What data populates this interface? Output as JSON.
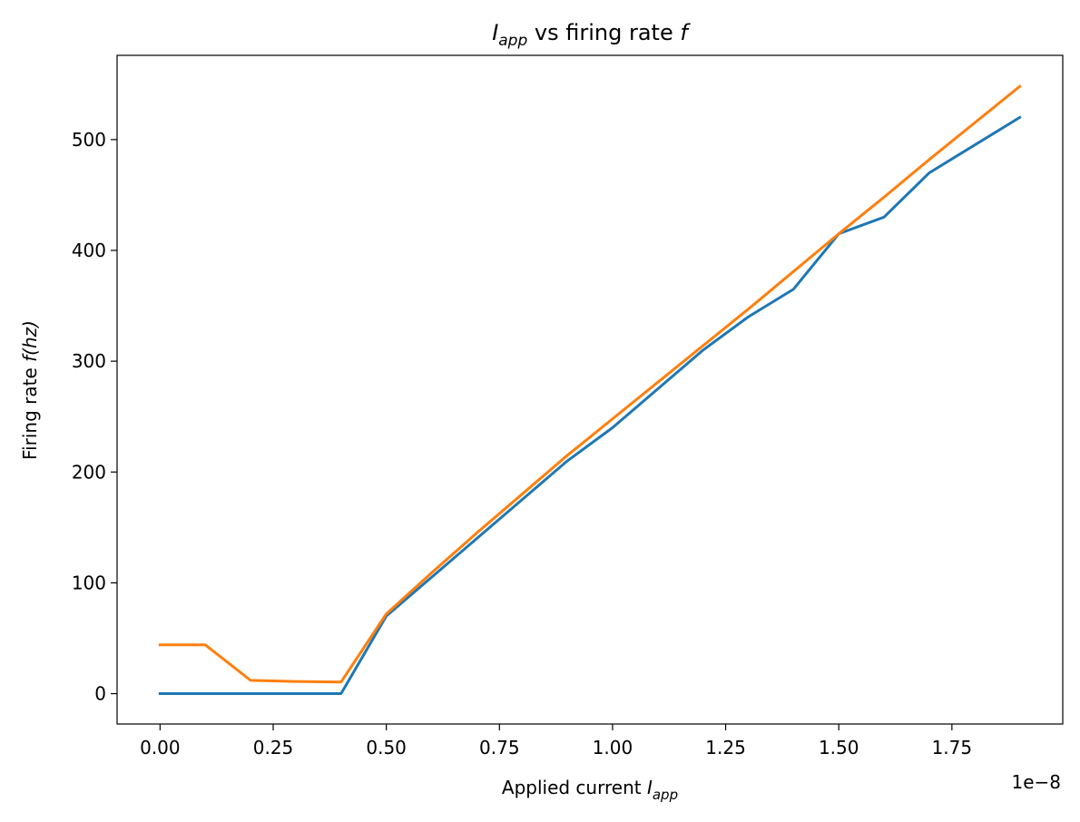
{
  "chart_data": {
    "type": "line",
    "title": {
      "main": "I",
      "sub": "app",
      "rest": " vs firing rate ",
      "tail": "f"
    },
    "xlabel": {
      "main": "Applied current ",
      "var": "I",
      "sub": "app"
    },
    "ylabel": {
      "main": "Firing rate ",
      "var": "f(hz)"
    },
    "x_offset_text": "1e−8",
    "x_tick_labels": [
      "0.00",
      "0.25",
      "0.50",
      "0.75",
      "1.00",
      "1.25",
      "1.50",
      "1.75"
    ],
    "y_tick_labels": [
      "0",
      "100",
      "200",
      "300",
      "400",
      "500"
    ],
    "xlim": [
      -0.095,
      1.995
    ],
    "ylim": [
      -27.4,
      576
    ],
    "x_ticks": [
      0.0,
      0.25,
      0.5,
      0.75,
      1.0,
      1.25,
      1.5,
      1.75
    ],
    "y_ticks": [
      0,
      100,
      200,
      300,
      400,
      500
    ],
    "x": [
      0.0,
      0.1,
      0.2,
      0.3,
      0.4,
      0.5,
      0.6,
      0.7,
      0.8,
      0.9,
      1.0,
      1.1,
      1.2,
      1.3,
      1.4,
      1.5,
      1.6,
      1.7,
      1.8,
      1.9
    ],
    "series": [
      {
        "color": "#1f77b4",
        "values": [
          0,
          0,
          0,
          0,
          0,
          70,
          105,
          140,
          175,
          210,
          240,
          275,
          310,
          340,
          365,
          415,
          430,
          470,
          495,
          520
        ]
      },
      {
        "color": "#ff7f0e",
        "values": [
          44,
          44,
          12,
          11,
          10.5,
          72,
          109,
          145,
          180,
          215,
          248,
          281,
          314,
          347,
          381,
          415,
          448,
          482,
          515,
          548
        ]
      }
    ]
  }
}
